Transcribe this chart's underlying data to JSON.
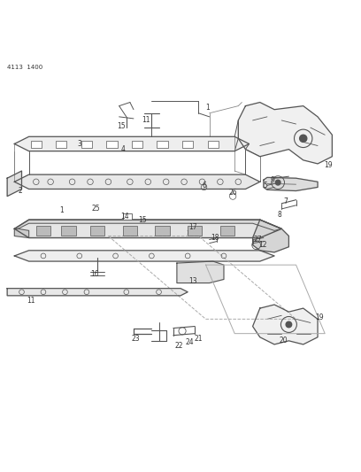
{
  "title": "",
  "header_text": "4113  1400",
  "background_color": "#ffffff",
  "line_color": "#555555",
  "text_color": "#333333",
  "figsize": [
    4.08,
    5.33
  ],
  "dpi": 100
}
